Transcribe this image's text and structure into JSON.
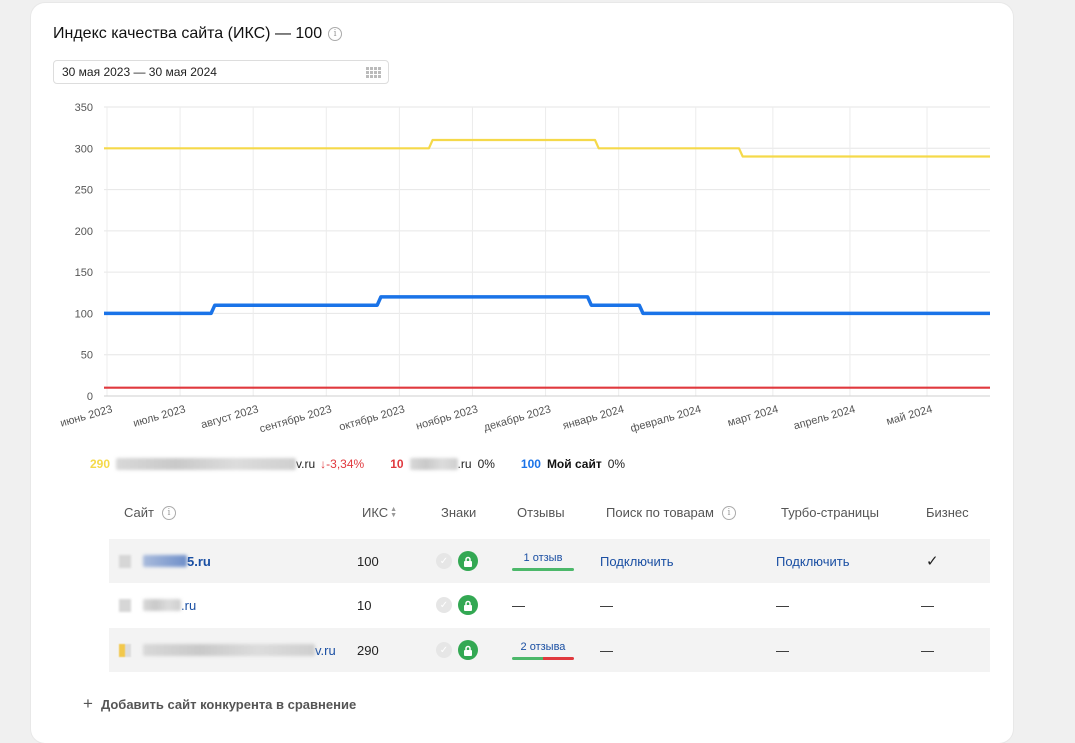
{
  "header": {
    "title": "Индекс качества сайта (ИКС) — 100",
    "info_icon": "i"
  },
  "date_range": {
    "value": "30 мая 2023 — 30 мая 2024",
    "icon": "calendar-icon"
  },
  "chart_data": {
    "type": "line",
    "ylim": [
      0,
      350
    ],
    "yticks": [
      "0",
      "50",
      "100",
      "150",
      "200",
      "250",
      "300",
      "350"
    ],
    "x_labels": [
      "июнь 2023",
      "июль 2023",
      "август 2023",
      "сентябрь 2023",
      "октябрь 2023",
      "ноябрь 2023",
      "декабрь 2023",
      "январь 2024",
      "февраль 2024",
      "март 2024",
      "апрель 2024",
      "май 2024"
    ],
    "x_range": [
      0,
      12
    ],
    "grid": true,
    "series": [
      {
        "color": "#f5d94a",
        "points": [
          [
            0,
            300
          ],
          [
            4.4,
            300
          ],
          [
            4.45,
            310
          ],
          [
            6.65,
            310
          ],
          [
            6.7,
            300
          ],
          [
            8.6,
            300
          ],
          [
            8.65,
            290
          ],
          [
            12,
            290
          ]
        ]
      },
      {
        "color": "#1a73e8",
        "points": [
          [
            0,
            100
          ],
          [
            1.45,
            100
          ],
          [
            1.5,
            110
          ],
          [
            3.7,
            110
          ],
          [
            3.75,
            120
          ],
          [
            6.55,
            120
          ],
          [
            6.6,
            110
          ],
          [
            7.25,
            110
          ],
          [
            7.3,
            100
          ],
          [
            12,
            100
          ]
        ]
      },
      {
        "color": "#e0393e",
        "points": [
          [
            0,
            10
          ],
          [
            12,
            10
          ]
        ]
      }
    ]
  },
  "legend": [
    {
      "value": "290",
      "color": "#f5d94a",
      "suffix": "v.ru",
      "delta": "↓-3,34%",
      "delta_color": "#e0393e"
    },
    {
      "value": "10",
      "color": "#e0393e",
      "suffix": ".ru",
      "delta": "0%"
    },
    {
      "value": "100",
      "color": "#1a73e8",
      "label": "Мой сайт",
      "delta": "0%"
    }
  ],
  "table": {
    "headers": {
      "site": "Сайт",
      "iks": "ИКС",
      "signs": "Знаки",
      "reviews": "Отзывы",
      "goods": "Поиск по товарам",
      "turbo": "Турбо-страницы",
      "business": "Бизнес"
    },
    "rows": [
      {
        "site": "5.ru",
        "iks": "100",
        "reviews": "1 отзыв",
        "goods": "Подключить",
        "turbo": "Подключить",
        "business": "✓"
      },
      {
        "site": ".ru",
        "iks": "10",
        "reviews": "—",
        "goods": "—",
        "turbo": "—",
        "business": "—"
      },
      {
        "site": "v.ru",
        "iks": "290",
        "reviews": "2 отзыва",
        "goods": "—",
        "turbo": "—",
        "business": "—"
      }
    ]
  },
  "add_competitor": {
    "icon": "+",
    "label": "Добавить сайт конкурента в сравнение"
  }
}
